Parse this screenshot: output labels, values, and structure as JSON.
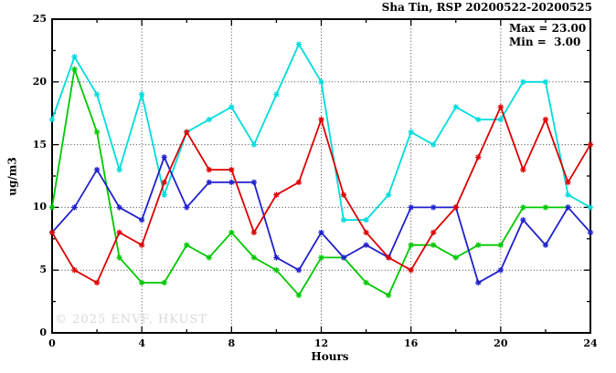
{
  "title": "Sha Tin, RSP 20200522-20200525",
  "legend": {
    "max_label": "Max = 23.00",
    "min_label": "Min =  3.00"
  },
  "watermark": "© 2025 ENVF, HKUST",
  "colors": {
    "cyan": "#00dcdc",
    "green": "#00c800",
    "blue": "#2020cc",
    "red": "#dd0000",
    "grid": "#444444",
    "axis": "#000000",
    "watermark": "#d9d9d9",
    "background": "#ffffff"
  },
  "chart_data": {
    "type": "line",
    "title": "Sha Tin, RSP 20200522-20200525",
    "xlabel": "Hours",
    "ylabel": "ug/m3",
    "xlim": [
      0,
      24
    ],
    "ylim": [
      0,
      25
    ],
    "x_major_ticks": [
      0,
      4,
      8,
      12,
      16,
      20,
      24
    ],
    "x_minor_ticks": [
      2,
      6,
      10,
      14,
      18,
      22
    ],
    "y_major_ticks": [
      0,
      5,
      10,
      15,
      20,
      25
    ],
    "y_minor_ticks": [
      2.5,
      7.5,
      12.5,
      17.5,
      22.5
    ],
    "x_grid": [
      4,
      8,
      12,
      16,
      20
    ],
    "y_grid": [
      5,
      10,
      15,
      20
    ],
    "grid": "dotted",
    "legend_position": "top-right-inside",
    "stats": {
      "max": 23.0,
      "min": 3.0
    },
    "x_unit_hours": true,
    "series": [
      {
        "name": "series-cyan",
        "color": "#00dcdc",
        "x_start": 0,
        "values": [
          17,
          22,
          19,
          13,
          19,
          11,
          16,
          17,
          18,
          15,
          19,
          23,
          20,
          9,
          9,
          11,
          16,
          15,
          18,
          17,
          17,
          20,
          20,
          11,
          10
        ]
      },
      {
        "name": "series-green",
        "color": "#00c800",
        "x_start": 0,
        "values": [
          10,
          21,
          16,
          6,
          4,
          4,
          7,
          6,
          8,
          6,
          5,
          3,
          6,
          6,
          4,
          3,
          7,
          7,
          6,
          7,
          7,
          10,
          10,
          10
        ]
      },
      {
        "name": "series-blue",
        "color": "#2020cc",
        "x_start": 0,
        "values": [
          8,
          10,
          13,
          10,
          9,
          14,
          10,
          12,
          12,
          12,
          6,
          5,
          8,
          6,
          7,
          6,
          10,
          10,
          10,
          4,
          5,
          9,
          7,
          10,
          8
        ]
      },
      {
        "name": "series-red",
        "color": "#dd0000",
        "x_start": 0,
        "values": [
          8,
          5,
          4,
          8,
          7,
          12,
          16,
          13,
          13,
          8,
          11,
          12,
          17,
          11,
          8,
          6,
          5,
          8,
          10,
          14,
          18,
          13,
          17,
          12,
          15
        ]
      }
    ]
  }
}
